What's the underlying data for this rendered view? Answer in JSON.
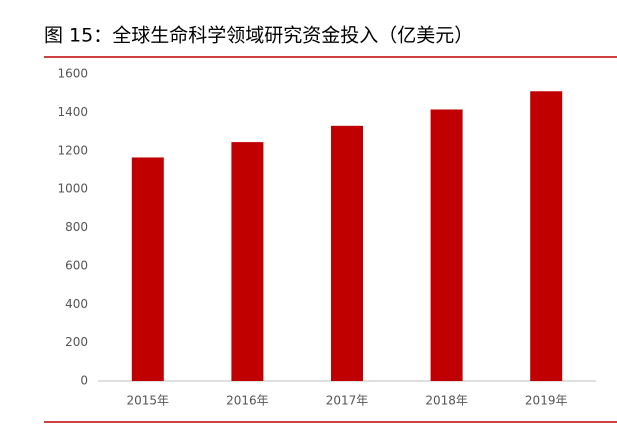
{
  "chart_data": {
    "type": "bar",
    "title": "图 15：全球生命科学领域研究资金投入（亿美元）",
    "categories": [
      "2015年",
      "2016年",
      "2017年",
      "2018年",
      "2019年"
    ],
    "values": [
      1165,
      1245,
      1330,
      1415,
      1510
    ],
    "color": "#c00000",
    "ylim": [
      0,
      1600
    ],
    "yticks": [
      0,
      200,
      400,
      600,
      800,
      1000,
      1200,
      1400,
      1600
    ],
    "grid": false
  }
}
